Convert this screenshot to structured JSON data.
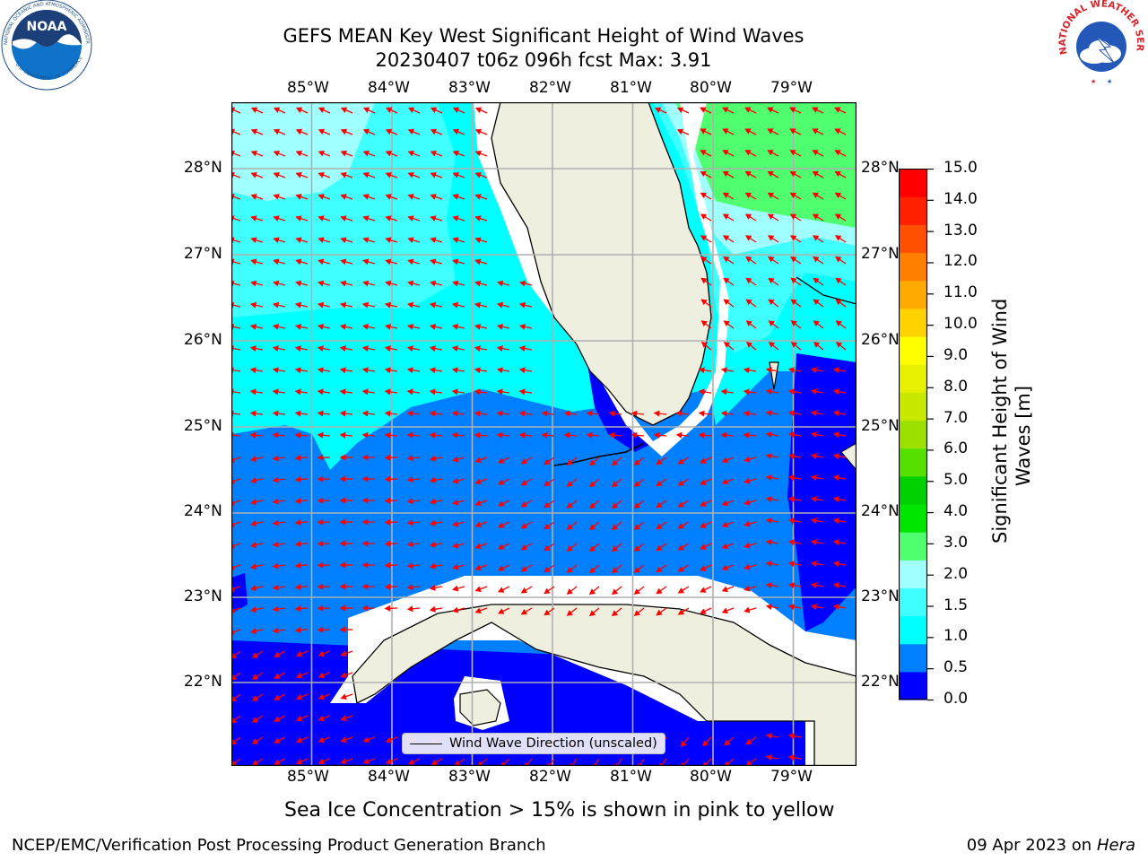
{
  "header": {
    "title_line1": "GEFS MEAN Key West Significant Height of Wind Waves",
    "title_line2": "20230407 t06z 096h fcst   Max: 3.91"
  },
  "logos": {
    "left": {
      "name": "NOAA",
      "ring_text": "NATIONAL OCEANIC AND ATMOSPHERIC ADMINISTRATION · U.S. DEPARTMENT OF COMMERCE",
      "color": "#1f4e8c"
    },
    "right": {
      "name": "NATIONAL WEATHER SERVICE",
      "color": "#d9232a"
    }
  },
  "map": {
    "lon_labels": [
      "85°W",
      "84°W",
      "83°W",
      "82°W",
      "81°W",
      "80°W",
      "79°W"
    ],
    "lat_labels": [
      "28°N",
      "27°N",
      "26°N",
      "25°N",
      "24°N",
      "23°N",
      "22°N"
    ],
    "legend_label": "Wind Wave Direction (unscaled)",
    "arrow_color": "#ff0000",
    "land_color": "#efefdf"
  },
  "colorbar": {
    "title": "Significant Height of Wind Waves [m]",
    "title_line1": "Significant Height of Wind",
    "title_line2": "Waves [m]",
    "ticks": [
      "15.0",
      "14.0",
      "13.0",
      "12.0",
      "11.0",
      "10.0",
      "9.0",
      "8.0",
      "7.0",
      "6.0",
      "5.0",
      "4.0",
      "3.0",
      "2.0",
      "1.5",
      "1.0",
      "0.5",
      "0.0"
    ],
    "colors_bottom_to_top": [
      "#0000ff",
      "#0080ff",
      "#00ffff",
      "#40ffff",
      "#a0ffff",
      "#50ff70",
      "#00e600",
      "#00d000",
      "#55e000",
      "#9be000",
      "#c8e800",
      "#e6f000",
      "#ffff00",
      "#ffd200",
      "#ffaa00",
      "#ff8000",
      "#ff5000",
      "#ff2000",
      "#ff0000"
    ]
  },
  "caption": "Sea Ice Concentration > 15% is shown in pink to yellow",
  "footer": {
    "left": "NCEP/EMC/Verification Post Processing Product Generation Branch",
    "right_prefix": "09 Apr 2023 on ",
    "right_host": "Hera"
  }
}
